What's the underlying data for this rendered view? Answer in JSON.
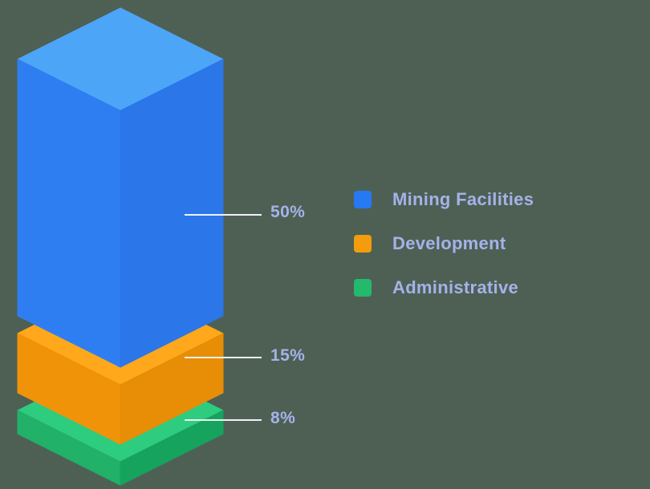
{
  "page": {
    "background_color": "#4e6054"
  },
  "chart_data": {
    "type": "bar",
    "variant": "isometric-3d-stacked-column",
    "title": "",
    "categories": [
      "Mining Facilities",
      "Development",
      "Administrative"
    ],
    "values": [
      50,
      15,
      8
    ],
    "value_labels": [
      "50%",
      "15%",
      "8%"
    ],
    "unit": "%",
    "grid": false,
    "legend_position": "right",
    "colors": [
      {
        "top": "#4da5f7",
        "left": "#2e7ef2",
        "right": "#2b76e8"
      },
      {
        "top": "#ffa81c",
        "left": "#f09309",
        "right": "#e88d06"
      },
      {
        "top": "#2ecc7e",
        "left": "#21b168",
        "right": "#16a35e"
      }
    ],
    "legend": [
      {
        "label": "Mining Facilities",
        "color": "#2779f2"
      },
      {
        "label": "Development",
        "color": "#f39c0d"
      },
      {
        "label": "Administrative",
        "color": "#23ba6e"
      }
    ],
    "label_text_color": "#a5b2e9",
    "leader_line_color": "#eef1f8"
  }
}
